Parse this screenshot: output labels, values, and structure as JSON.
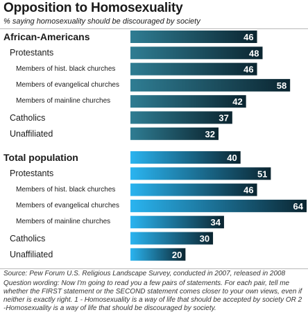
{
  "title": "Opposition to Homosexuality",
  "subtitle": "% saying homosexuality should be discouraged by society",
  "chart_data": {
    "type": "bar",
    "orientation": "horizontal",
    "xlim": [
      0,
      64
    ],
    "groups": [
      {
        "name": "African-Americans",
        "value": 46,
        "rows": [
          {
            "label": "Protestants",
            "level": 1,
            "value": 48
          },
          {
            "label": "Members of hist. black churches",
            "level": 2,
            "value": 46
          },
          {
            "label": "Members of evangelical churches",
            "level": 2,
            "value": 58
          },
          {
            "label": "Members of mainline churches",
            "level": 2,
            "value": 42
          },
          {
            "label": "Catholics",
            "level": 1,
            "value": 37
          },
          {
            "label": "Unaffiliated",
            "level": 1,
            "value": 32
          }
        ]
      },
      {
        "name": "Total population",
        "value": 40,
        "rows": [
          {
            "label": "Protestants",
            "level": 1,
            "value": 51
          },
          {
            "label": "Members of hist. black churches",
            "level": 2,
            "value": 46
          },
          {
            "label": "Members of evangelical churches",
            "level": 2,
            "value": 64
          },
          {
            "label": "Members of mainline churches",
            "level": 2,
            "value": 34
          },
          {
            "label": "Catholics",
            "level": 1,
            "value": 30
          },
          {
            "label": "Unaffiliated",
            "level": 1,
            "value": 20
          }
        ]
      }
    ],
    "colors": {
      "group1_start": "#2f7d93",
      "group1_end": "#0b2530",
      "group2_start": "#2ab4f0",
      "group2_end": "#0b2530"
    }
  },
  "source": "Source: Pew Forum U.S. Religious Landscape Survey, conducted in 2007, released in 2008",
  "question_wording": "Question wording: Now I'm going to read you a few pairs of statements. For each pair, tell me whether the FIRST statement or the SECOND statement comes closer to your own views, even if neither is exactly right. 1 - Homosexuality is a way of life that should be accepted by society OR 2 -Homosexuality is a way of life that should be discouraged by society."
}
